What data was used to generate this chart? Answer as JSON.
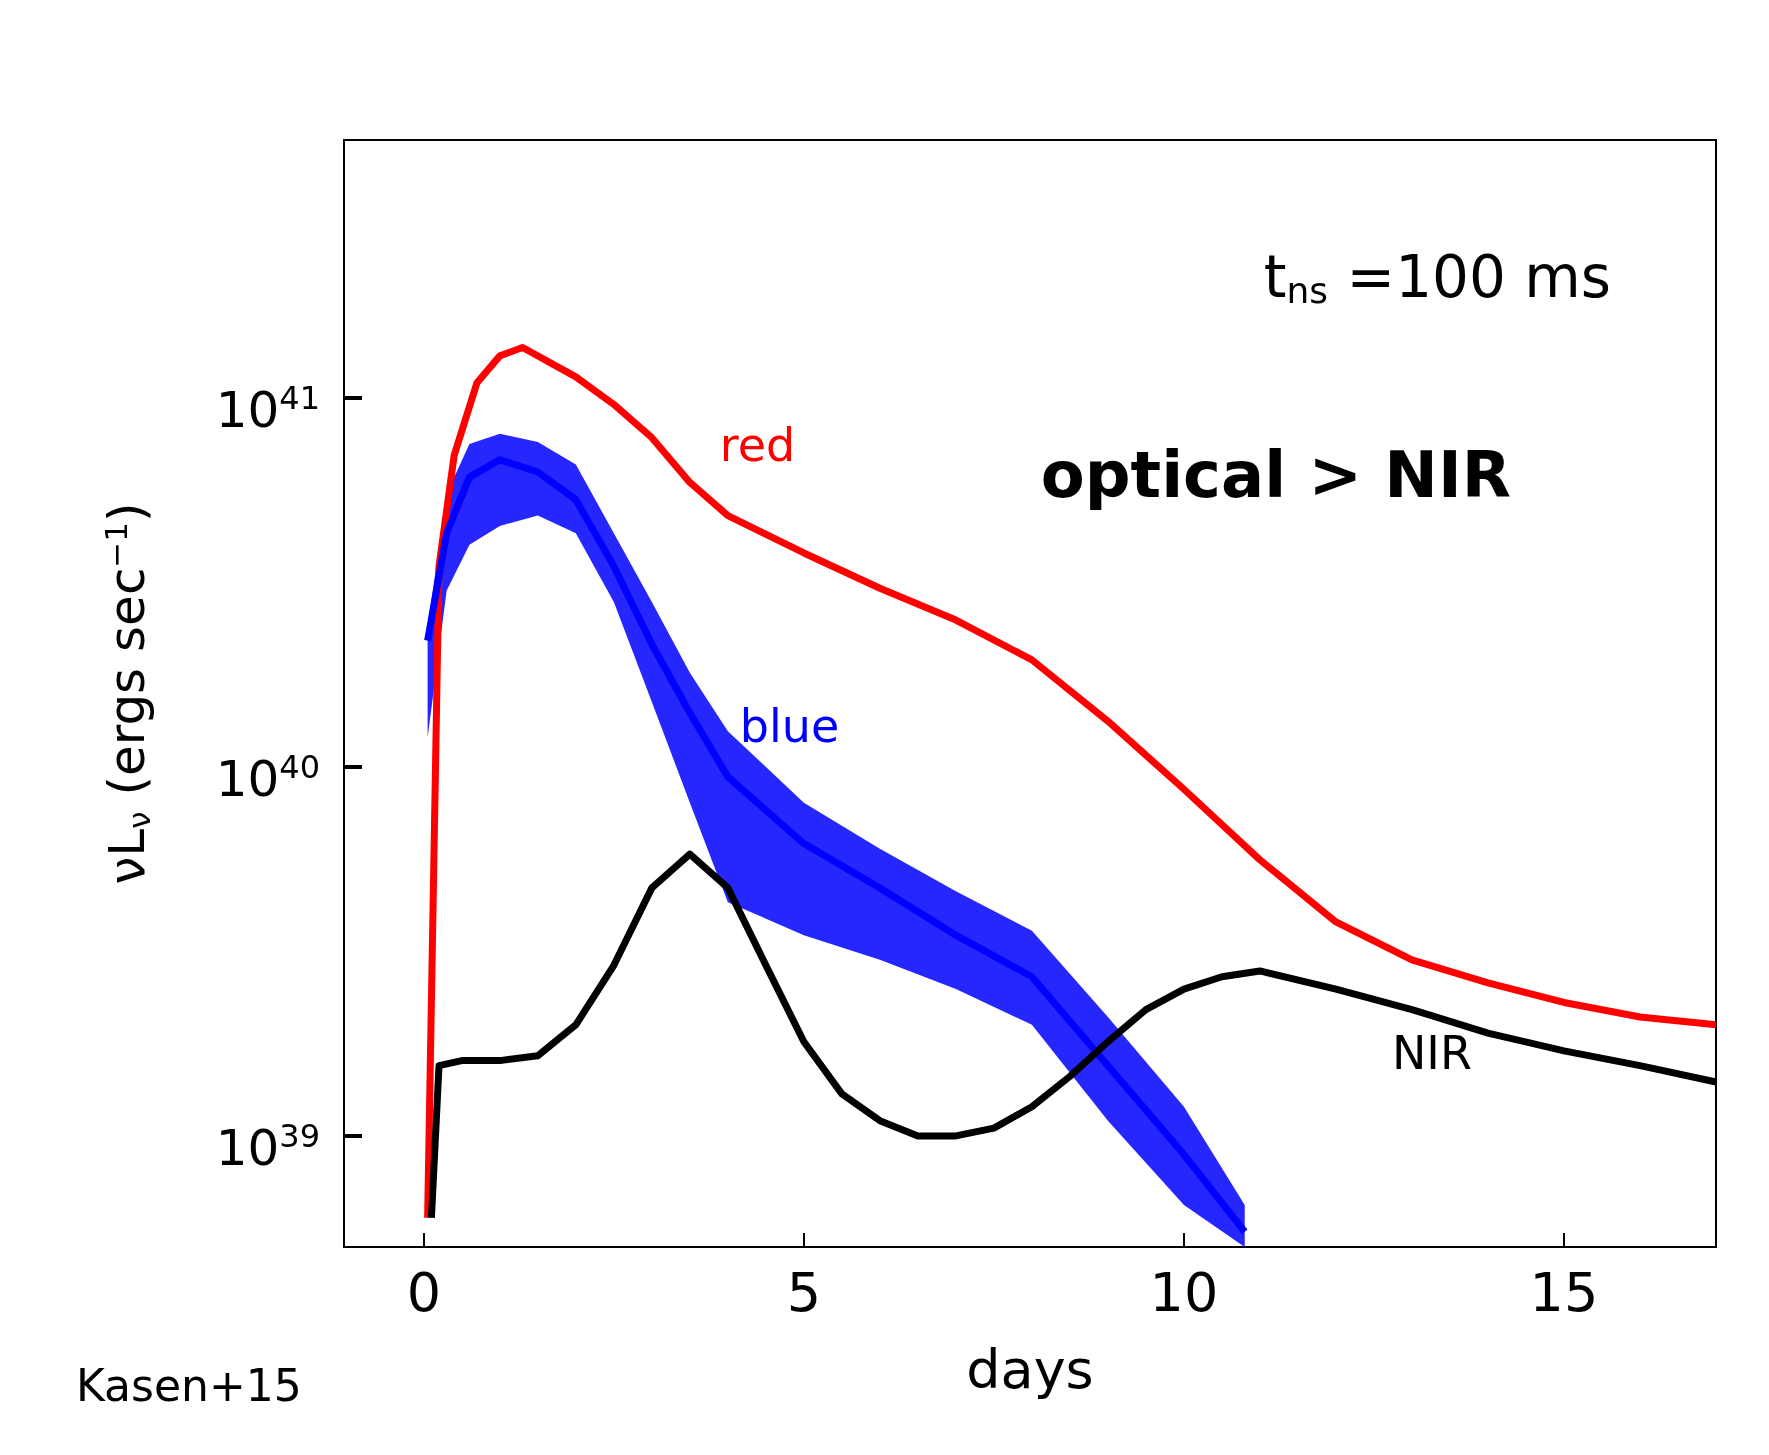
{
  "chart_data": {
    "type": "line",
    "xlabel": "days",
    "ylabel": "νL$_{ν}$ (ergs sec$^{−1}$)",
    "log": "y",
    "xlim": [
      -1.05,
      17
    ],
    "xticks": [
      0,
      5,
      10,
      15
    ],
    "ylim": [
      5e+38,
      5e+41
    ],
    "yticks": [
      {
        "value": 1e+39,
        "label": "10$^{39}$"
      },
      {
        "value": 1e+40,
        "label": "10$^{40}$"
      },
      {
        "value": 1e+41,
        "label": "10$^{41}$"
      }
    ],
    "annotations": [
      "t$_{ns}$ =100 ms",
      "optical > NIR",
      "Kasen+15"
    ],
    "series": [
      {
        "name": "red",
        "color": "#ff0000",
        "x": [
          0.05,
          0.2,
          0.4,
          0.7,
          1.0,
          1.3,
          2,
          2.5,
          3,
          3.5,
          4,
          5,
          6,
          7,
          8,
          9,
          10,
          11,
          12,
          13,
          14,
          15,
          16,
          17
        ],
        "values": [
          6e+38,
          3.5e+40,
          7e+40,
          1.1e+41,
          1.3e+41,
          1.37e+41,
          1.14e+41,
          9.6e+40,
          7.8e+40,
          5.9e+40,
          4.8e+40,
          3.8e+40,
          3.05e+40,
          2.5e+40,
          1.95e+40,
          1.33e+40,
          8.7e+39,
          5.6e+39,
          3.8e+39,
          3e+39,
          2.6e+39,
          2.3e+39,
          2.1e+39,
          2e+39
        ]
      },
      {
        "name": "blue",
        "color": "#0000ff",
        "x": [
          0.05,
          0.3,
          0.6,
          1.0,
          1.5,
          2,
          2.5,
          3,
          3.5,
          4,
          5,
          6,
          7,
          8,
          9,
          10,
          10.8
        ],
        "values": [
          2.2e+40,
          4.3e+40,
          6.1e+40,
          6.8e+40,
          6.3e+40,
          5.3e+40,
          3.5e+40,
          2.15e+40,
          1.4e+40,
          9.4e+39,
          6.2e+39,
          4.7e+39,
          3.5e+39,
          2.7e+39,
          1.55e+39,
          8.9e+38,
          5.5e+38
        ],
        "lower": [
          1.2e+40,
          3e+40,
          4e+40,
          4.5e+40,
          4.8e+40,
          4.3e+40,
          2.8e+40,
          1.5e+40,
          8e+39,
          4.3e+39,
          3.5e+39,
          3e+39,
          2.5e+39,
          2e+39,
          1.1e+39,
          6.5e+38,
          5e+38
        ],
        "upper": [
          2.4e+40,
          5.5e+40,
          7.5e+40,
          8e+40,
          7.6e+40,
          6.6e+40,
          4.3e+40,
          2.8e+40,
          1.8e+40,
          1.25e+40,
          8e+39,
          6e+39,
          4.6e+39,
          3.6e+39,
          2.1e+39,
          1.2e+39,
          6.5e+38
        ]
      },
      {
        "name": "NIR",
        "color": "#000000",
        "x": [
          0.1,
          0.2,
          0.5,
          1,
          1.5,
          2,
          2.5,
          3,
          3.5,
          4,
          4.5,
          5,
          5.5,
          6,
          6.5,
          7,
          7.5,
          8,
          8.5,
          9,
          9.5,
          10,
          10.5,
          11,
          12,
          13,
          14,
          15,
          16,
          17
        ],
        "values": [
          6e+38,
          1.55e+39,
          1.6e+39,
          1.6e+39,
          1.65e+39,
          2e+39,
          2.9e+39,
          4.7e+39,
          5.8e+39,
          4.7e+39,
          2.9e+39,
          1.8e+39,
          1.3e+39,
          1.1e+39,
          1e+39,
          1e+39,
          1.05e+39,
          1.2e+39,
          1.45e+39,
          1.8e+39,
          2.2e+39,
          2.5e+39,
          2.7e+39,
          2.8e+39,
          2.5e+39,
          2.2e+39,
          1.9e+39,
          1.7e+39,
          1.55e+39,
          1.4e+39
        ]
      }
    ]
  }
}
